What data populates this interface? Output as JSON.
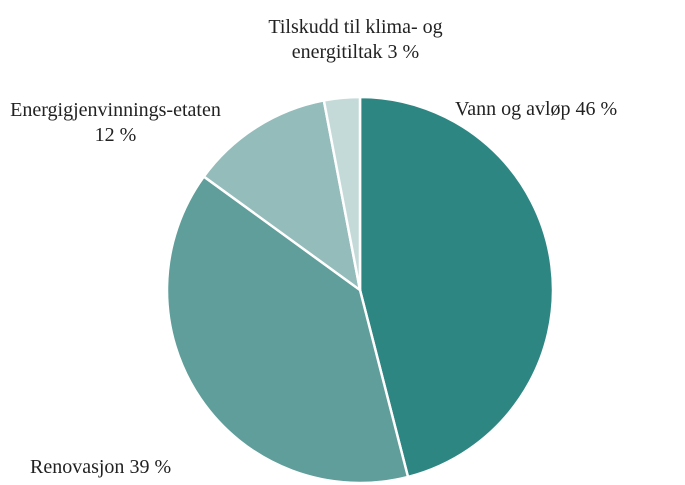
{
  "chart_data": {
    "type": "pie",
    "categories": [
      "Vann og avløp",
      "Renovasjon",
      "Energigjenvinnings-etaten",
      "Tilskudd til klima- og energitiltak"
    ],
    "values": [
      46,
      39,
      12,
      3
    ],
    "value_labels": [
      "46 %",
      "39 %",
      "12 %",
      "3 %"
    ],
    "colors": [
      "#2e8683",
      "#5f9e9a",
      "#93bcba",
      "#c4dad9"
    ]
  }
}
